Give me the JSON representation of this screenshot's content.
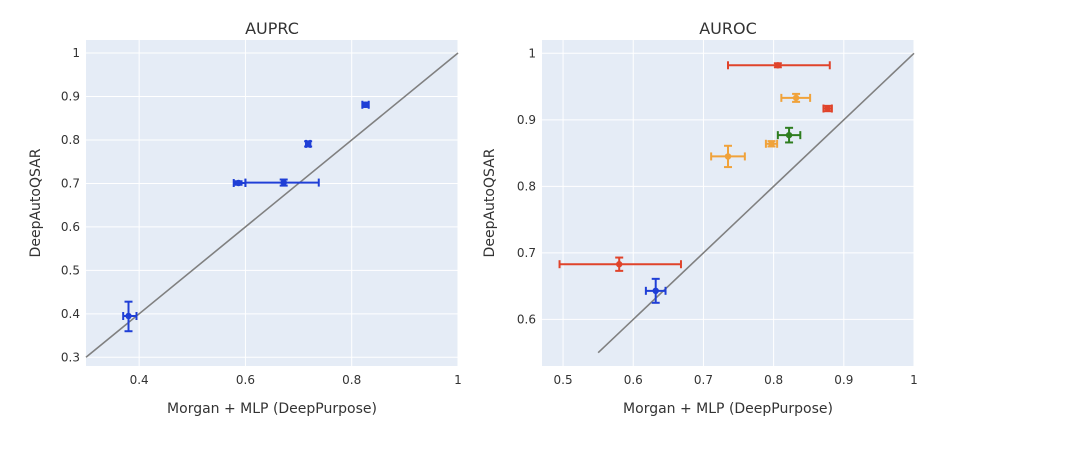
{
  "chart_data": [
    {
      "type": "scatter",
      "title": "AUPRC",
      "xlabel": "Morgan + MLP (DeepPurpose)",
      "ylabel": "DeepAutoQSAR",
      "xlim": [
        0.3,
        1.0
      ],
      "ylim": [
        0.28,
        1.03
      ],
      "xticks": [
        0.4,
        0.6,
        0.8,
        1.0
      ],
      "xtick_labels": [
        "0.4",
        "0.6",
        "0.8",
        "1"
      ],
      "yticks": [
        0.3,
        0.4,
        0.5,
        0.6,
        0.7,
        0.8,
        0.9,
        1.0
      ],
      "ytick_labels": [
        "0.3",
        "0.4",
        "0.5",
        "0.6",
        "0.7",
        "0.8",
        "0.9",
        "1"
      ],
      "diagonal": [
        [
          0.3,
          0.3
        ],
        [
          1.0,
          1.0
        ]
      ],
      "points": [
        {
          "x": 0.38,
          "y": 0.395,
          "xerr": [
            0.37,
            0.395
          ],
          "yerr": [
            0.36,
            0.428
          ],
          "color": "#1f3fd6"
        },
        {
          "x": 0.587,
          "y": 0.701,
          "xerr": [
            0.578,
            0.6
          ],
          "yerr": [
            0.697,
            0.705
          ],
          "color": "#1f3fd6"
        },
        {
          "x": 0.672,
          "y": 0.702,
          "xerr": [
            0.6,
            0.738
          ],
          "yerr": [
            0.695,
            0.709
          ],
          "color": "#1f3fd6"
        },
        {
          "x": 0.718,
          "y": 0.791,
          "xerr": [
            0.714,
            0.722
          ],
          "yerr": [
            0.785,
            0.797
          ],
          "color": "#1f3fd6"
        },
        {
          "x": 0.826,
          "y": 0.881,
          "xerr": [
            0.82,
            0.832
          ],
          "yerr": [
            0.876,
            0.886
          ],
          "color": "#1f3fd6"
        }
      ]
    },
    {
      "type": "scatter",
      "title": "AUROC",
      "xlabel": "Morgan + MLP (DeepPurpose)",
      "ylabel": "DeepAutoQSAR",
      "xlim": [
        0.47,
        1.0
      ],
      "ylim": [
        0.53,
        1.02
      ],
      "xticks": [
        0.5,
        0.6,
        0.7,
        0.8,
        0.9,
        1.0
      ],
      "xtick_labels": [
        "0.5",
        "0.6",
        "0.7",
        "0.8",
        "0.9",
        "1"
      ],
      "yticks": [
        0.6,
        0.7,
        0.8,
        0.9,
        1.0
      ],
      "ytick_labels": [
        "0.6",
        "0.7",
        "0.8",
        "0.9",
        "1"
      ],
      "diagonal": [
        [
          0.55,
          0.55
        ],
        [
          1.0,
          1.0
        ]
      ],
      "points": [
        {
          "x": 0.806,
          "y": 0.982,
          "xerr": [
            0.735,
            0.88
          ],
          "yerr": [
            0.979,
            0.985
          ],
          "color": "#e0432a"
        },
        {
          "x": 0.877,
          "y": 0.917,
          "xerr": [
            0.871,
            0.883
          ],
          "yerr": [
            0.913,
            0.921
          ],
          "color": "#e0432a"
        },
        {
          "x": 0.58,
          "y": 0.683,
          "xerr": [
            0.495,
            0.668
          ],
          "yerr": [
            0.673,
            0.693
          ],
          "color": "#e0432a"
        },
        {
          "x": 0.832,
          "y": 0.933,
          "xerr": [
            0.811,
            0.852
          ],
          "yerr": [
            0.927,
            0.939
          ],
          "color": "#f0a23a"
        },
        {
          "x": 0.735,
          "y": 0.845,
          "xerr": [
            0.711,
            0.759
          ],
          "yerr": [
            0.829,
            0.861
          ],
          "color": "#f0a23a"
        },
        {
          "x": 0.797,
          "y": 0.864,
          "xerr": [
            0.789,
            0.805
          ],
          "yerr": [
            0.86,
            0.868
          ],
          "color": "#f0a23a"
        },
        {
          "x": 0.822,
          "y": 0.877,
          "xerr": [
            0.806,
            0.838
          ],
          "yerr": [
            0.866,
            0.888
          ],
          "color": "#2e7d1f"
        },
        {
          "x": 0.632,
          "y": 0.643,
          "xerr": [
            0.618,
            0.646
          ],
          "yerr": [
            0.625,
            0.661
          ],
          "color": "#1f3fd6"
        }
      ]
    }
  ]
}
